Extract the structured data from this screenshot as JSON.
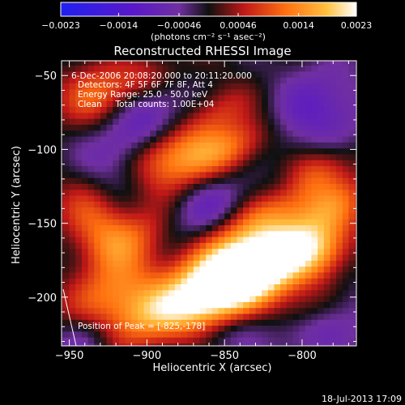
{
  "chart_data": {
    "type": "heatmap",
    "title": "Reconstructed RHESSI Image",
    "xlabel": "Heliocentric X (arcsec)",
    "ylabel": "Heliocentric Y (arcsec)",
    "xlim": [
      -955,
      -765
    ],
    "ylim": [
      -233,
      -40
    ],
    "x_ticks": [
      {
        "value": -950,
        "label": "−950"
      },
      {
        "value": -900,
        "label": "−900"
      },
      {
        "value": -850,
        "label": "−850"
      },
      {
        "value": -800,
        "label": "−800"
      }
    ],
    "y_ticks": [
      {
        "value": -50,
        "label": "−50"
      },
      {
        "value": -100,
        "label": "−100"
      },
      {
        "value": -150,
        "label": "−150"
      },
      {
        "value": -200,
        "label": "−200"
      }
    ],
    "colorbar": {
      "range": [
        -0.0023,
        0.0023
      ],
      "tick_labels": [
        "−0.0023",
        "−0.0014",
        "−0.00046",
        "0.00046",
        "0.0014",
        "0.0023"
      ],
      "units_label": "(photons cm⁻² s⁻¹ asec⁻²)",
      "colors": [
        "#2020f0",
        "#5a18c8",
        "#7030a0",
        "#101010",
        "#c01818",
        "#ff7010",
        "#ffc040",
        "#ffffff"
      ]
    },
    "info": [
      "6-Dec-2006 20:08:20.000 to 20:11:20.000",
      "Detectors: 4F 5F 6F 7F 8F, Att 4",
      "Energy Range: 25.0 - 50.0 keV",
      "Clean     Total counts: 1.00E+04"
    ],
    "peak_label": "Position of Peak = [-825,-178]",
    "peak": [
      -825,
      -178
    ]
  },
  "footer": {
    "date": "18-Jul-2013 17:09"
  }
}
